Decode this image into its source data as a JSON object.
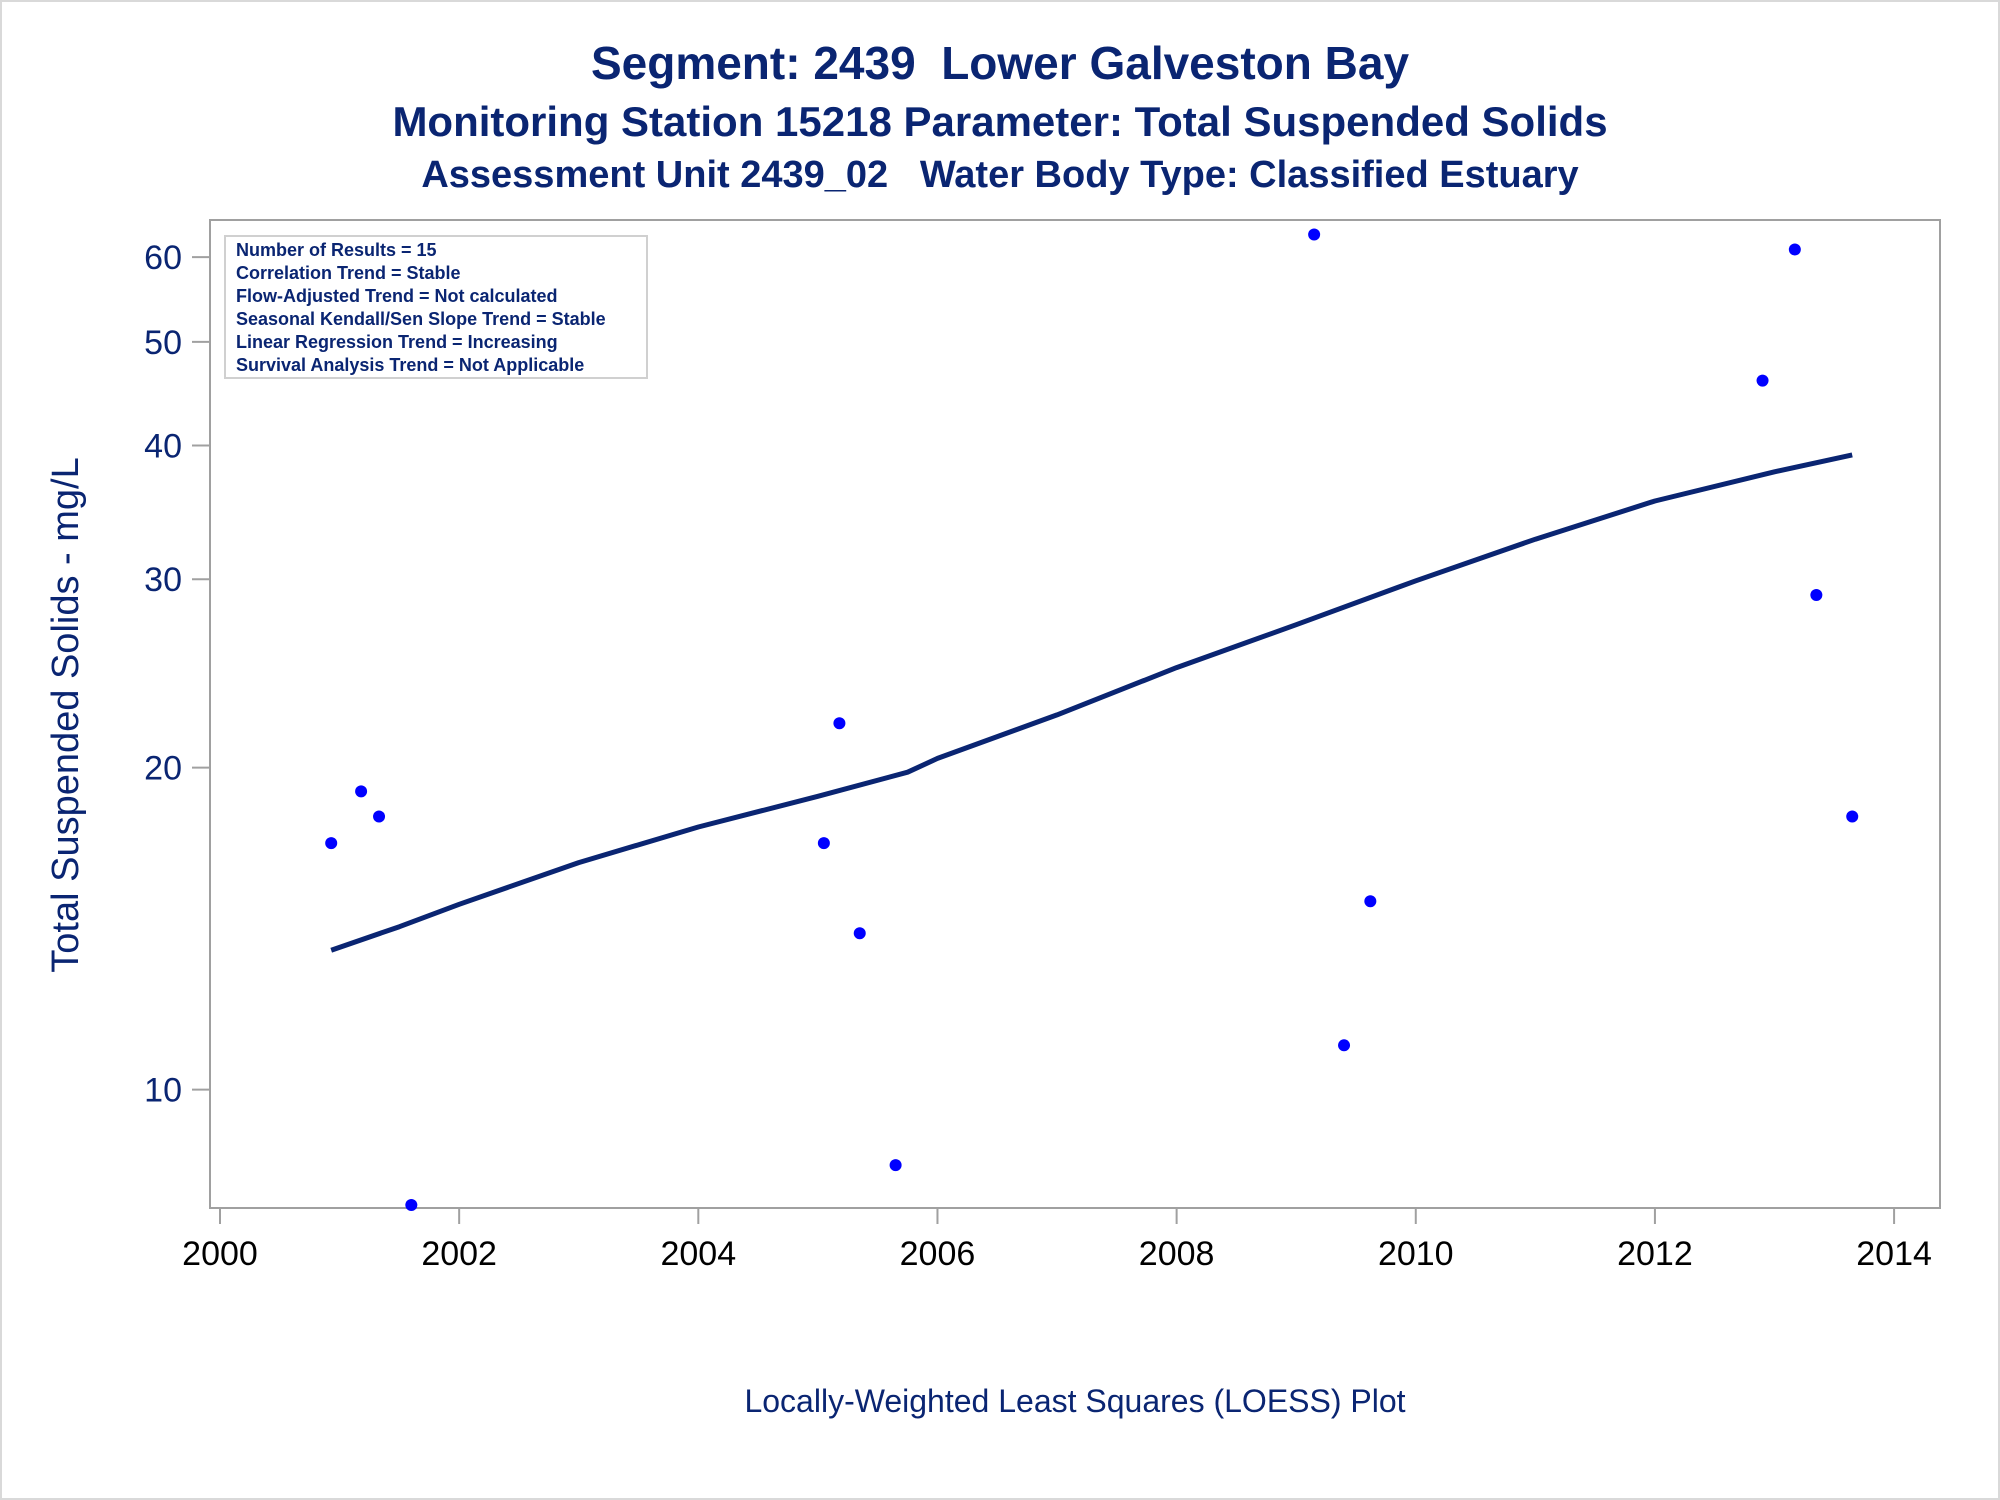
{
  "titles": {
    "line1": "Segment: 2439  Lower Galveston Bay",
    "line2": "Monitoring Station 15218 Parameter: Total Suspended Solids",
    "line3": "Assessment Unit 2439_02   Water Body Type: Classified Estuary"
  },
  "info_box": [
    "Number of Results = 15",
    "Correlation Trend = Stable",
    "Flow-Adjusted Trend = Not calculated",
    "Seasonal Kendall/Sen Slope Trend = Stable",
    "Linear Regression Trend = Increasing",
    "Survival Analysis Trend = Not Applicable"
  ],
  "footnote": "Locally-Weighted Least Squares (LOESS) Plot",
  "colors": {
    "text": "#0a2572",
    "points": "#0000ff",
    "line": "#0a2572",
    "axis": "#a0a0a0"
  },
  "chart_data": {
    "type": "scatter",
    "ylabel": "Total Suspended Solids - mg/L",
    "xlabel": "",
    "y_scale": "log",
    "xlim": [
      2000,
      2014.2
    ],
    "ylim": [
      7.75,
      65
    ],
    "x_ticks": [
      2000,
      2002,
      2004,
      2006,
      2008,
      2010,
      2012,
      2014
    ],
    "y_ticks": [
      10,
      20,
      30,
      40,
      50,
      60
    ],
    "grid": false,
    "series": [
      {
        "type": "scatter",
        "x": [
          2000.93,
          2001.18,
          2001.33,
          2001.6,
          2005.05,
          2005.18,
          2005.35,
          2005.65,
          2009.15,
          2009.4,
          2009.62,
          2012.9,
          2013.17,
          2013.35,
          2013.65
        ],
        "y": [
          17,
          19,
          18,
          7.8,
          17,
          22,
          14,
          8.5,
          63,
          11,
          15,
          46,
          61,
          29,
          18
        ]
      },
      {
        "type": "line",
        "x": [
          2000.93,
          2001.5,
          2002,
          2003,
          2004,
          2005,
          2005.75,
          2006,
          2007,
          2008,
          2009,
          2010,
          2011,
          2012,
          2013,
          2013.65
        ],
        "y": [
          13.5,
          14.2,
          14.9,
          16.3,
          17.6,
          18.8,
          19.8,
          20.4,
          22.4,
          24.8,
          27.2,
          29.9,
          32.7,
          35.5,
          37.8,
          39.2
        ]
      }
    ]
  }
}
